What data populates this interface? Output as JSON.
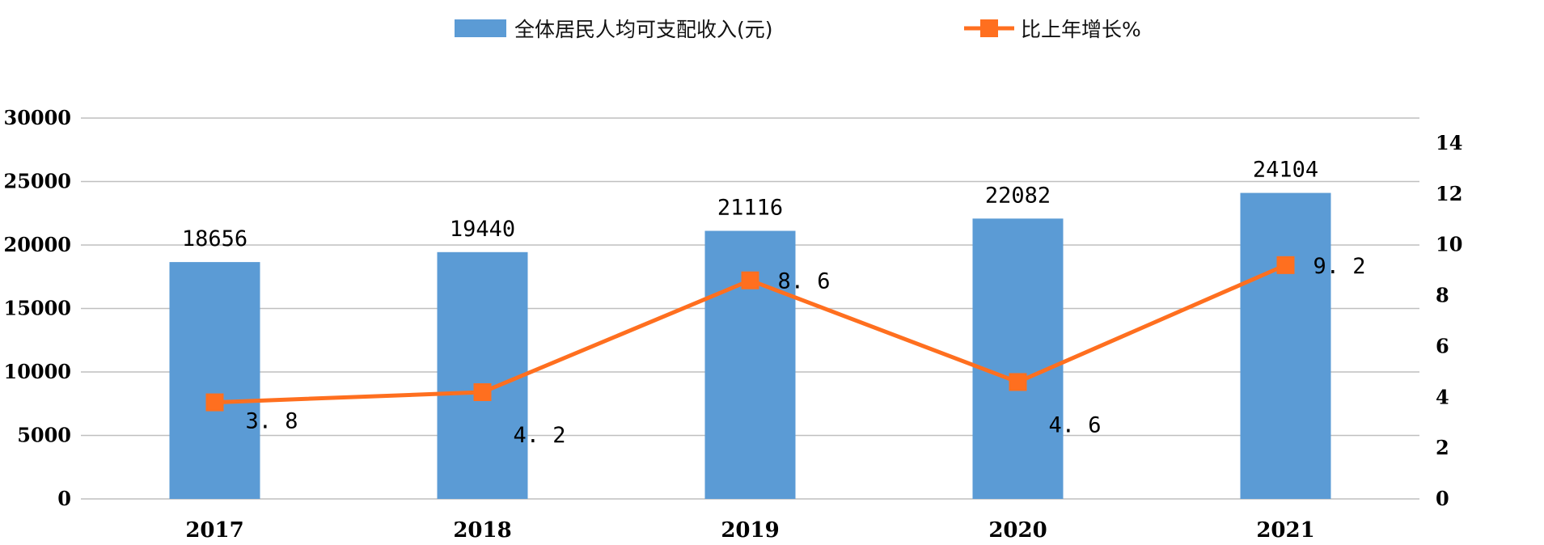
{
  "chart_data": {
    "type": "bar",
    "categories": [
      "2017",
      "2018",
      "2019",
      "2020",
      "2021"
    ],
    "series": [
      {
        "name": "全体居民人均可支配收入(元)",
        "kind": "bar",
        "axis": "left",
        "color": "#5b9bd5",
        "values": [
          18656,
          19440,
          21116,
          22082,
          24104
        ],
        "labels": [
          "18656",
          "19440",
          "21116",
          "22082",
          "24104"
        ]
      },
      {
        "name": "比上年增长%",
        "kind": "line",
        "axis": "right",
        "color": "#ff6f1f",
        "values": [
          3.8,
          4.2,
          8.6,
          4.6,
          9.2
        ],
        "labels": [
          "3. 8",
          "4. 2",
          "8. 6",
          "4. 6",
          "9. 2"
        ]
      }
    ],
    "left_axis": {
      "ylim": [
        0,
        30000
      ],
      "ticks": [
        "0",
        "5000",
        "10000",
        "15000",
        "20000",
        "25000",
        "30000"
      ]
    },
    "right_axis": {
      "ylim": [
        0,
        14
      ],
      "ticks": [
        "0",
        "2",
        "4",
        "6",
        "8",
        "10",
        "12",
        "14"
      ]
    },
    "grid": true,
    "legend_position": "top-center"
  }
}
